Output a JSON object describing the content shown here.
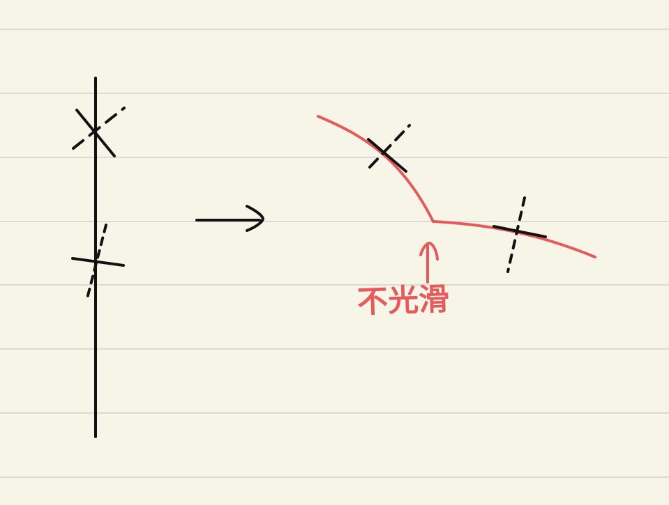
{
  "colors": {
    "paper": "#f7f4e8",
    "ruled_line": "#dddad1",
    "ink": "#111111",
    "red_ink": "#e55a5a"
  },
  "ruled_lines": {
    "count": 7
  },
  "annotation": {
    "text": "不光滑"
  },
  "icons": {
    "arrow": "right-arrow-icon",
    "pointer": "up-arrow-icon"
  }
}
